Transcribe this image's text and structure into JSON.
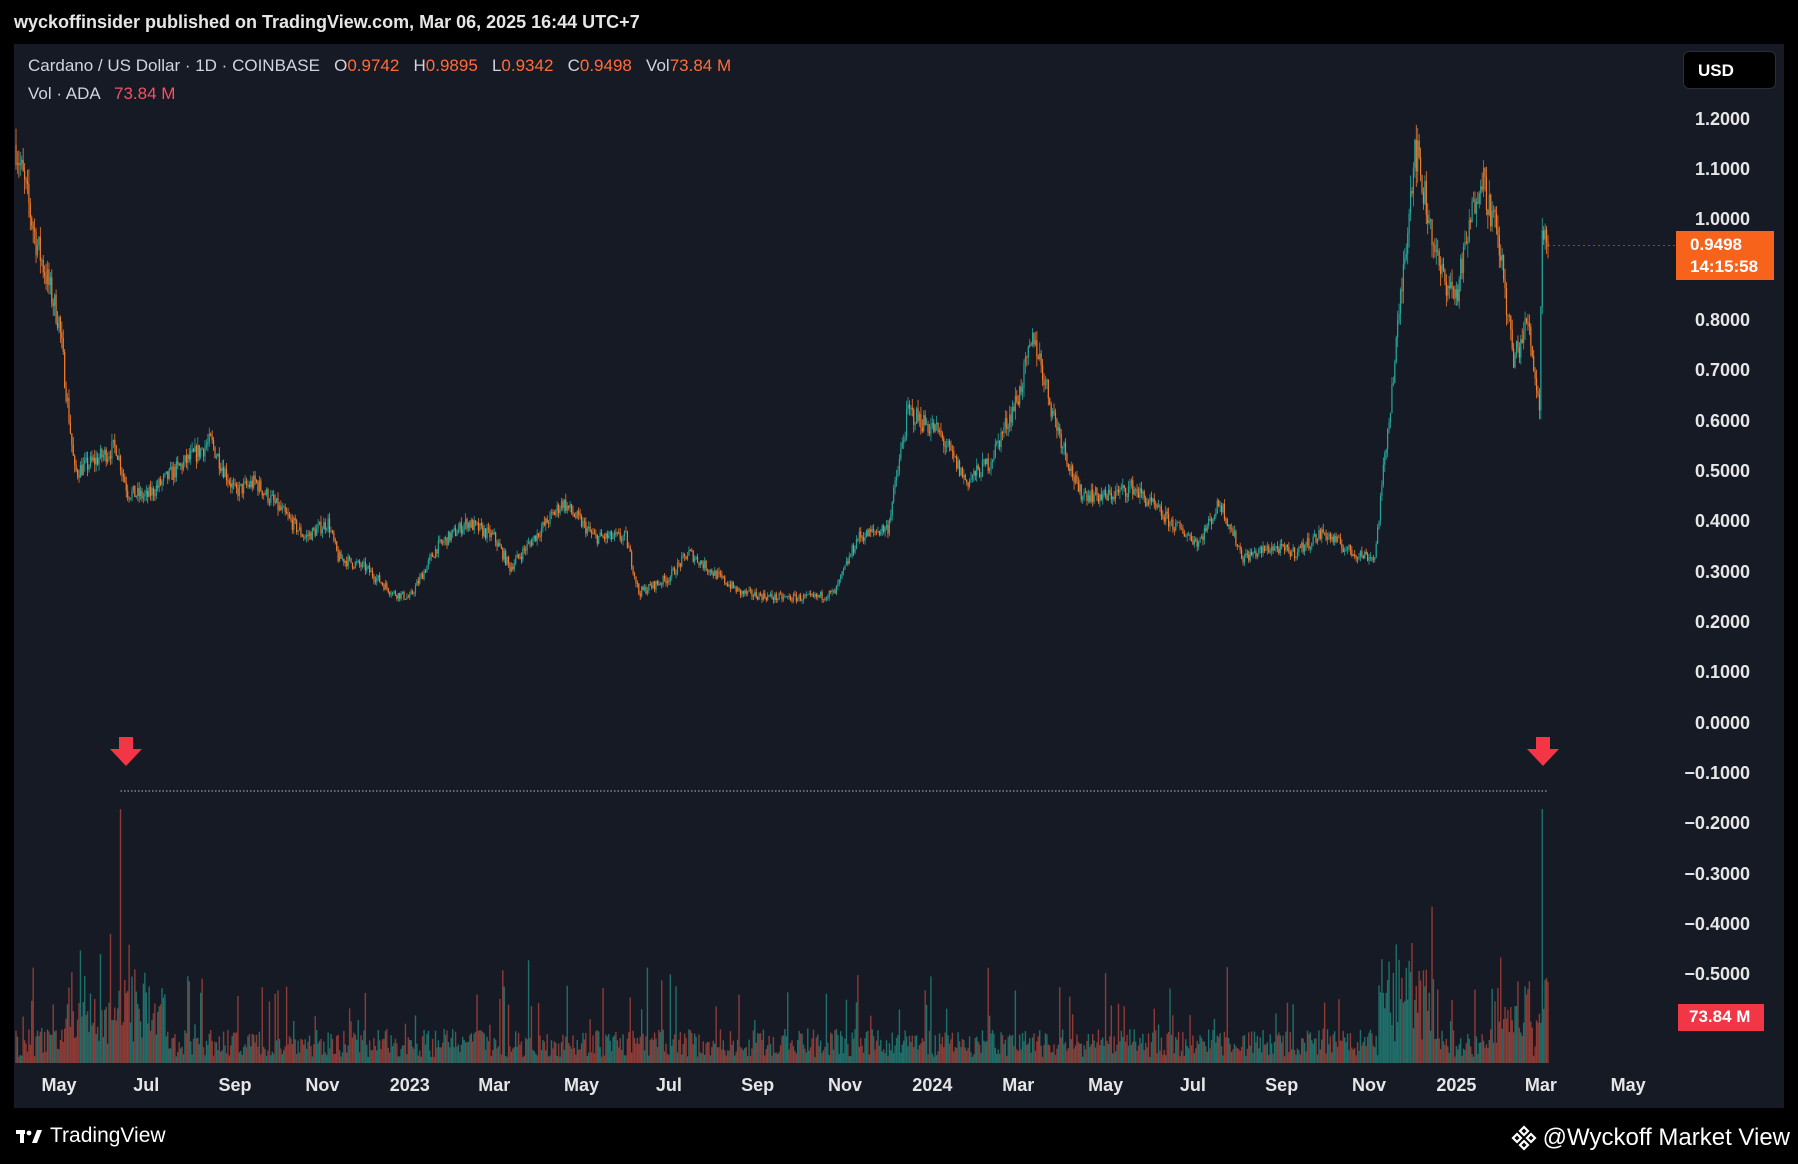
{
  "header": {
    "publish_line": "wyckoffinsider published on TradingView.com, Mar 06, 2025 16:44 UTC+7"
  },
  "legend": {
    "symbol": "Cardano / US Dollar · 1D · COINBASE",
    "o_label": "O",
    "o_value": "0.9742",
    "h_label": "H",
    "h_value": "0.9895",
    "l_label": "L",
    "l_value": "0.9342",
    "c_label": "C",
    "c_value": "0.9498",
    "vol_label": "Vol",
    "vol_value": "73.84 M",
    "vol_row_label": "Vol · ADA",
    "vol_row_value": "73.84 M"
  },
  "currency_button": "USD",
  "price_badge": {
    "price": "0.9498",
    "countdown": "14:15:58"
  },
  "volume_badge": "73.84 M",
  "footer": {
    "brand": "TradingView",
    "watermark": "@Wyckoff Market View"
  },
  "colors": {
    "up": "#26a69a",
    "down": "#f77c2a",
    "vol_up": "#1f6f6a",
    "vol_down": "#8e3b36",
    "arrow": "#f23645"
  },
  "icons": {
    "brand": "tradingview-logo-icon",
    "watermark": "binance-diamond-icon",
    "markers": "down-arrow-icon"
  },
  "chart_data": {
    "type": "candlestick",
    "title": "Cardano / US Dollar · 1D · COINBASE",
    "y_ticks": [
      "1.2000",
      "1.1000",
      "1.0000",
      "0.8000",
      "0.7000",
      "0.6000",
      "0.5000",
      "0.4000",
      "0.3000",
      "0.2000",
      "0.1000",
      "0.0000",
      "−0.1000",
      "−0.2000",
      "−0.3000",
      "−0.4000",
      "−0.5000"
    ],
    "ylim": [
      -0.55,
      1.27
    ],
    "x_ticks": [
      "May",
      "Jul",
      "Sep",
      "Nov",
      "2023",
      "Mar",
      "May",
      "Jul",
      "Sep",
      "Nov",
      "2024",
      "Mar",
      "May",
      "Jul",
      "Sep",
      "Nov",
      "2025",
      "Mar",
      "May"
    ],
    "price_path": [
      [
        "2022-04-01",
        1.15
      ],
      [
        "2022-04-15",
        0.96
      ],
      [
        "2022-05-01",
        0.8
      ],
      [
        "2022-05-12",
        0.5
      ],
      [
        "2022-05-25",
        0.52
      ],
      [
        "2022-06-10",
        0.55
      ],
      [
        "2022-06-18",
        0.46
      ],
      [
        "2022-07-01",
        0.45
      ],
      [
        "2022-07-20",
        0.5
      ],
      [
        "2022-08-15",
        0.56
      ],
      [
        "2022-09-01",
        0.46
      ],
      [
        "2022-09-15",
        0.48
      ],
      [
        "2022-10-01",
        0.43
      ],
      [
        "2022-10-20",
        0.37
      ],
      [
        "2022-11-05",
        0.4
      ],
      [
        "2022-11-12",
        0.33
      ],
      [
        "2022-12-01",
        0.31
      ],
      [
        "2022-12-20",
        0.26
      ],
      [
        "2023-01-01",
        0.25
      ],
      [
        "2023-01-20",
        0.35
      ],
      [
        "2023-02-10",
        0.4
      ],
      [
        "2023-03-01",
        0.37
      ],
      [
        "2023-03-12",
        0.31
      ],
      [
        "2023-04-01",
        0.38
      ],
      [
        "2023-04-18",
        0.44
      ],
      [
        "2023-05-10",
        0.37
      ],
      [
        "2023-06-01",
        0.37
      ],
      [
        "2023-06-10",
        0.26
      ],
      [
        "2023-07-01",
        0.29
      ],
      [
        "2023-07-15",
        0.34
      ],
      [
        "2023-08-01",
        0.3
      ],
      [
        "2023-08-20",
        0.26
      ],
      [
        "2023-09-15",
        0.25
      ],
      [
        "2023-10-10",
        0.25
      ],
      [
        "2023-10-25",
        0.26
      ],
      [
        "2023-11-10",
        0.37
      ],
      [
        "2023-12-01",
        0.39
      ],
      [
        "2023-12-15",
        0.62
      ],
      [
        "2024-01-05",
        0.58
      ],
      [
        "2024-01-25",
        0.48
      ],
      [
        "2024-02-10",
        0.52
      ],
      [
        "2024-03-01",
        0.65
      ],
      [
        "2024-03-12",
        0.77
      ],
      [
        "2024-03-25",
        0.62
      ],
      [
        "2024-04-12",
        0.46
      ],
      [
        "2024-05-01",
        0.45
      ],
      [
        "2024-05-20",
        0.47
      ],
      [
        "2024-06-15",
        0.4
      ],
      [
        "2024-07-05",
        0.36
      ],
      [
        "2024-07-20",
        0.44
      ],
      [
        "2024-08-05",
        0.33
      ],
      [
        "2024-08-25",
        0.35
      ],
      [
        "2024-09-10",
        0.34
      ],
      [
        "2024-09-30",
        0.38
      ],
      [
        "2024-10-20",
        0.34
      ],
      [
        "2024-11-05",
        0.33
      ],
      [
        "2024-11-20",
        0.75
      ],
      [
        "2024-12-03",
        1.15
      ],
      [
        "2024-12-20",
        0.9
      ],
      [
        "2025-01-01",
        0.85
      ],
      [
        "2025-01-18",
        1.1
      ],
      [
        "2025-01-31",
        0.95
      ],
      [
        "2025-02-10",
        0.72
      ],
      [
        "2025-02-20",
        0.8
      ],
      [
        "2025-02-28",
        0.63
      ],
      [
        "2025-03-02",
        1.0
      ],
      [
        "2025-03-06",
        0.9498
      ]
    ],
    "volume_spikes": [
      [
        "2022-06-13",
        "peak"
      ],
      [
        "2025-03-02",
        "peak"
      ]
    ],
    "volume_last": "73.84 M",
    "annotations": [
      "down-arrow marker above 2022-06 volume peak",
      "down-arrow marker above 2025-03 volume peak",
      "dotted horizontal line connecting the two volume peaks"
    ],
    "grid": false
  }
}
